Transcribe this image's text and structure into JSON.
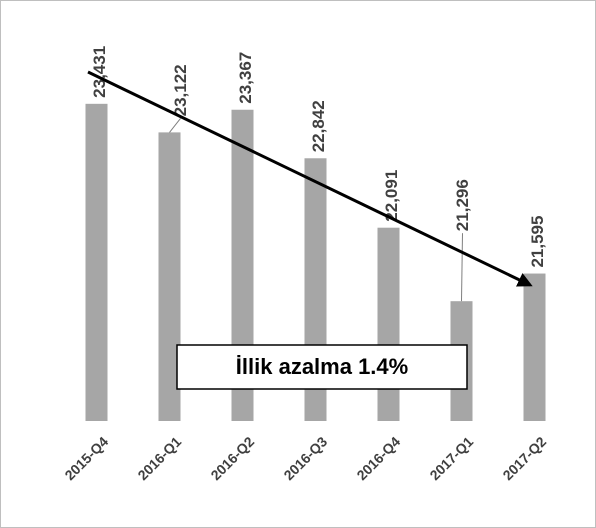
{
  "chart_data": {
    "type": "bar",
    "categories": [
      "2015-Q4",
      "2016-Q1",
      "2016-Q2",
      "2016-Q3",
      "2016-Q4",
      "2017-Q1",
      "2017-Q2"
    ],
    "values": [
      23431,
      23122,
      23367,
      22842,
      22091,
      21296,
      21595
    ],
    "value_labels": [
      "23,431",
      "23,122",
      "23,367",
      "22,842",
      "22,091",
      "21,296",
      "21,595"
    ],
    "color": "#a6a6a6",
    "ylim": [
      20000,
      24500
    ],
    "annotation": "İllik azalma 1.4%"
  }
}
